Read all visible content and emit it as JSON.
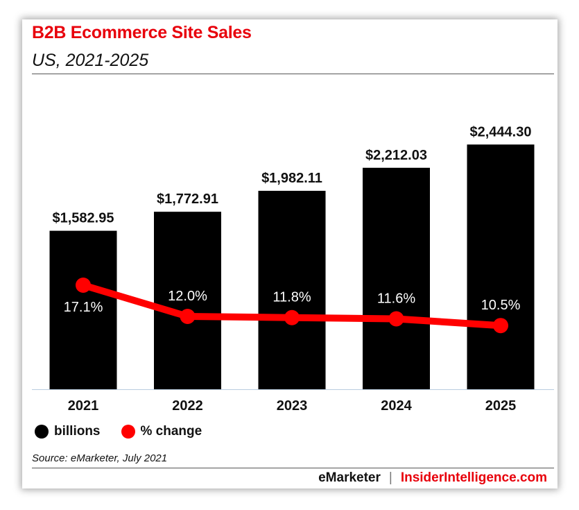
{
  "header": {
    "title": "B2B Ecommerce Site Sales",
    "subtitle": "US, 2021-2025"
  },
  "chart_data": {
    "type": "bar",
    "categories": [
      "2021",
      "2022",
      "2023",
      "2024",
      "2025"
    ],
    "series": [
      {
        "name": "billions",
        "type": "bar",
        "color": "#000000",
        "values": [
          1582.95,
          1772.91,
          1982.11,
          2212.03,
          2444.3
        ],
        "labels": [
          "$1,582.95",
          "$1,772.91",
          "$1,982.11",
          "$2,212.03",
          "$2,444.30"
        ]
      },
      {
        "name": "% change",
        "type": "line",
        "color": "#ff0000",
        "values": [
          17.1,
          12.0,
          11.8,
          11.6,
          10.5
        ],
        "labels": [
          "17.1%",
          "12.0%",
          "11.8%",
          "11.6%",
          "10.5%"
        ]
      }
    ],
    "legend_position": "bottom-left",
    "grid": false
  },
  "legend": {
    "items": [
      {
        "label": "billions",
        "color": "#000000"
      },
      {
        "label": "% change",
        "color": "#ff0000"
      }
    ]
  },
  "source": "Source: eMarketer, July 2021",
  "footer": {
    "brand_left": "eMarketer",
    "separator": "|",
    "brand_right": "InsiderIntelligence.com"
  }
}
